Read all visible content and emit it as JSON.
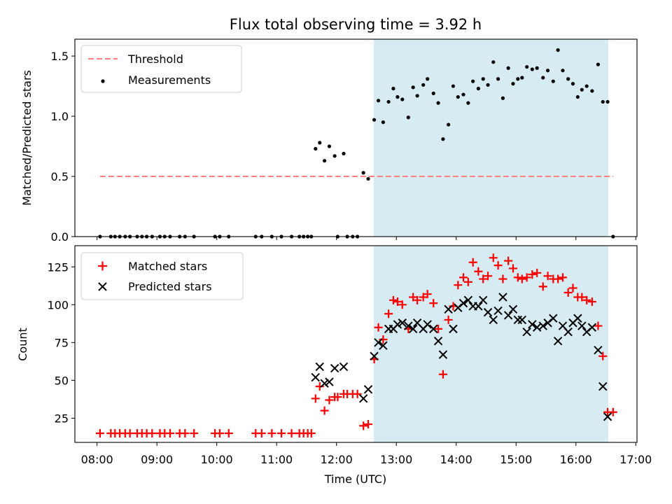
{
  "colors": {
    "threshold": "#ff7f7f",
    "measurement": "#000000",
    "matched": "#ff0000",
    "predicted": "#000000",
    "shade": "#add8e6"
  },
  "chart_data": [
    {
      "type": "scatter",
      "title": "Flux total observing time = 3.92 h",
      "xlabel": "",
      "ylabel": "Matched/Predicted stars",
      "xlim": [
        7.63,
        17.02
      ],
      "ylim": [
        0,
        1.64
      ],
      "yticks": [
        0.0,
        0.5,
        1.0,
        1.5
      ],
      "ytick_labels": [
        "0.0",
        "0.5",
        "1.0",
        "1.5"
      ],
      "shaded_region": [
        12.62,
        16.54
      ],
      "legend_position": "top-left",
      "threshold": {
        "name": "Threshold",
        "y": 0.5,
        "x_range": [
          8.05,
          16.62
        ]
      },
      "measurements": {
        "name": "Measurements",
        "x": [
          8.05,
          8.23,
          8.3,
          8.38,
          8.47,
          8.55,
          8.67,
          8.75,
          8.83,
          8.92,
          9.05,
          9.13,
          9.22,
          9.38,
          9.47,
          9.62,
          9.97,
          10.05,
          10.2,
          10.65,
          10.75,
          10.92,
          11.08,
          11.25,
          11.38,
          11.45,
          11.52,
          11.58,
          11.65,
          11.72,
          11.8,
          11.88,
          11.97,
          12.02,
          12.12,
          12.18,
          12.27,
          12.35,
          12.45,
          12.53,
          12.63,
          12.7,
          12.78,
          12.87,
          12.95,
          13.02,
          13.1,
          13.2,
          13.28,
          13.35,
          13.45,
          13.52,
          13.62,
          13.7,
          13.78,
          13.87,
          13.95,
          14.03,
          14.12,
          14.2,
          14.28,
          14.37,
          14.45,
          14.53,
          14.62,
          14.7,
          14.78,
          14.87,
          14.95,
          15.03,
          15.1,
          15.18,
          15.27,
          15.35,
          15.45,
          15.53,
          15.62,
          15.7,
          15.78,
          15.87,
          15.95,
          16.03,
          16.1,
          16.18,
          16.27,
          16.37,
          16.45,
          16.53,
          16.62
        ],
        "y": [
          0,
          0,
          0,
          0,
          0,
          0,
          0,
          0,
          0,
          0,
          0,
          0,
          0,
          0,
          0,
          0,
          0,
          0,
          0,
          0,
          0,
          0,
          0,
          0,
          0,
          0,
          0,
          0,
          0.73,
          0.78,
          0.63,
          0.75,
          0.67,
          0,
          0.69,
          0,
          0,
          0,
          0.53,
          0.48,
          0.97,
          1.13,
          0.95,
          1.12,
          1.23,
          1.16,
          1.14,
          0.99,
          1.24,
          1.17,
          1.26,
          1.31,
          1.19,
          1.11,
          0.81,
          0.93,
          1.25,
          1.16,
          1.18,
          1.11,
          1.29,
          1.23,
          1.31,
          1.26,
          1.45,
          1.31,
          1.15,
          1.4,
          1.27,
          1.31,
          1.32,
          1.41,
          1.39,
          1.4,
          1.32,
          1.38,
          1.29,
          1.55,
          1.38,
          1.31,
          1.27,
          1.16,
          1.22,
          1.25,
          1.21,
          1.43,
          1.12,
          1.12,
          0
        ]
      }
    },
    {
      "type": "scatter",
      "title": "",
      "xlabel": "Time (UTC)",
      "ylabel": "Count",
      "xlim": [
        7.63,
        17.02
      ],
      "ylim": [
        9,
        139
      ],
      "yticks": [
        25,
        50,
        75,
        100,
        125
      ],
      "ytick_labels": [
        "25",
        "50",
        "75",
        "100",
        "125"
      ],
      "xticks": [
        8,
        9,
        10,
        11,
        12,
        13,
        14,
        15,
        16,
        17
      ],
      "xtick_labels": [
        "08:00",
        "09:00",
        "10:00",
        "11:00",
        "12:00",
        "13:00",
        "14:00",
        "15:00",
        "16:00",
        "17:00"
      ],
      "shaded_region": [
        12.62,
        16.54
      ],
      "legend_position": "top-left",
      "series": [
        {
          "name": "Matched stars",
          "marker": "plus",
          "x": [
            8.05,
            8.23,
            8.3,
            8.38,
            8.47,
            8.55,
            8.67,
            8.75,
            8.83,
            8.92,
            9.05,
            9.13,
            9.22,
            9.38,
            9.47,
            9.62,
            9.97,
            10.05,
            10.2,
            10.65,
            10.75,
            10.92,
            11.08,
            11.25,
            11.38,
            11.45,
            11.52,
            11.58,
            11.65,
            11.72,
            11.8,
            11.88,
            11.97,
            12.02,
            12.12,
            12.18,
            12.27,
            12.35,
            12.45,
            12.53,
            12.63,
            12.7,
            12.78,
            12.87,
            12.95,
            13.02,
            13.1,
            13.2,
            13.28,
            13.35,
            13.45,
            13.52,
            13.62,
            13.7,
            13.78,
            13.87,
            13.95,
            14.03,
            14.12,
            14.2,
            14.28,
            14.37,
            14.45,
            14.53,
            14.62,
            14.7,
            14.78,
            14.87,
            14.95,
            15.03,
            15.1,
            15.18,
            15.27,
            15.35,
            15.45,
            15.53,
            15.62,
            15.7,
            15.78,
            15.87,
            15.95,
            16.03,
            16.1,
            16.18,
            16.27,
            16.37,
            16.45,
            16.53,
            16.62
          ],
          "y": [
            15,
            15,
            15,
            15,
            15,
            15,
            15,
            15,
            15,
            15,
            15,
            15,
            15,
            15,
            15,
            15,
            15,
            15,
            15,
            15,
            15,
            15,
            15,
            15,
            15,
            15,
            15,
            15,
            38,
            46,
            30,
            37,
            39,
            39,
            41,
            41,
            41,
            41,
            20,
            21,
            64,
            85,
            77,
            94,
            103,
            102,
            100,
            84,
            105,
            103,
            105,
            107,
            101,
            84,
            54,
            90,
            99,
            113,
            118,
            115,
            128,
            122,
            117,
            119,
            131,
            126,
            117,
            129,
            124,
            118,
            117,
            118,
            120,
            121,
            112,
            119,
            117,
            117,
            118,
            108,
            111,
            105,
            105,
            103,
            102,
            86,
            66,
            29,
            29
          ]
        },
        {
          "name": "Predicted stars",
          "marker": "x",
          "x": [
            11.65,
            11.72,
            11.8,
            11.88,
            11.97,
            12.12,
            12.45,
            12.53,
            12.63,
            12.7,
            12.78,
            12.87,
            12.95,
            13.02,
            13.1,
            13.2,
            13.28,
            13.35,
            13.45,
            13.52,
            13.62,
            13.7,
            13.78,
            13.87,
            13.95,
            14.03,
            14.12,
            14.2,
            14.28,
            14.37,
            14.45,
            14.53,
            14.62,
            14.7,
            14.78,
            14.87,
            14.95,
            15.03,
            15.1,
            15.18,
            15.27,
            15.35,
            15.45,
            15.53,
            15.62,
            15.7,
            15.78,
            15.87,
            15.95,
            16.03,
            16.1,
            16.18,
            16.27,
            16.37,
            16.45,
            16.53
          ],
          "y": [
            52,
            59,
            48,
            49,
            58,
            59,
            38,
            44,
            66,
            75,
            73,
            84,
            84,
            87,
            88,
            86,
            84,
            88,
            84,
            87,
            84,
            76,
            67,
            97,
            84,
            98,
            101,
            103,
            99,
            99,
            103,
            95,
            90,
            96,
            105,
            93,
            97,
            90,
            90,
            82,
            87,
            85,
            86,
            88,
            91,
            76,
            86,
            82,
            88,
            91,
            86,
            82,
            85,
            70,
            46,
            26
          ]
        }
      ]
    }
  ]
}
